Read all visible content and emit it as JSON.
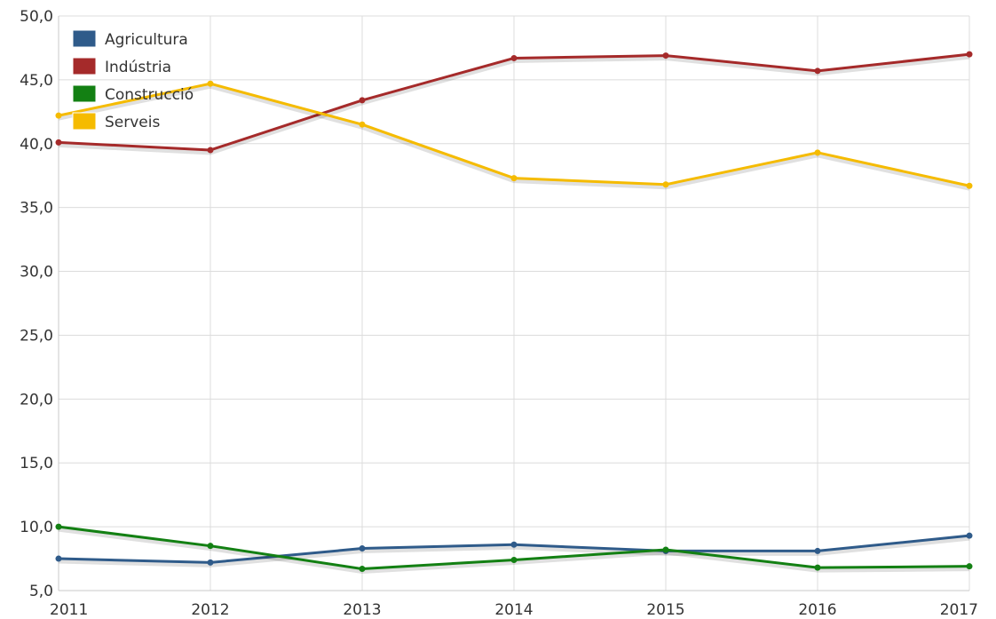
{
  "chart_data": {
    "type": "line",
    "title": "",
    "xlabel": "",
    "ylabel": "",
    "x": [
      "2011",
      "2012",
      "2013",
      "2014",
      "2015",
      "2016",
      "2017"
    ],
    "ylim": [
      5,
      50
    ],
    "yticks": [
      "5,0",
      "10,0",
      "15,0",
      "20,0",
      "25,0",
      "30,0",
      "35,0",
      "40,0",
      "45,0",
      "50,0"
    ],
    "ytick_values": [
      5,
      10,
      15,
      20,
      25,
      30,
      35,
      40,
      45,
      50
    ],
    "grid": true,
    "legend_position": "top-left",
    "series": [
      {
        "name": "Agricultura",
        "color": "#2f5b8a",
        "values": [
          7.5,
          7.2,
          8.3,
          8.6,
          8.1,
          8.1,
          9.3
        ]
      },
      {
        "name": "Indústria",
        "color": "#a52a2a",
        "values": [
          40.1,
          39.5,
          43.4,
          46.7,
          46.9,
          45.7,
          47.0
        ]
      },
      {
        "name": "Construcció",
        "color": "#138013",
        "values": [
          10.0,
          8.5,
          6.7,
          7.4,
          8.2,
          6.8,
          6.9
        ]
      },
      {
        "name": "Serveis",
        "color": "#f5bb00",
        "values": [
          42.2,
          44.7,
          41.5,
          37.3,
          36.8,
          39.3,
          36.7
        ]
      }
    ]
  }
}
